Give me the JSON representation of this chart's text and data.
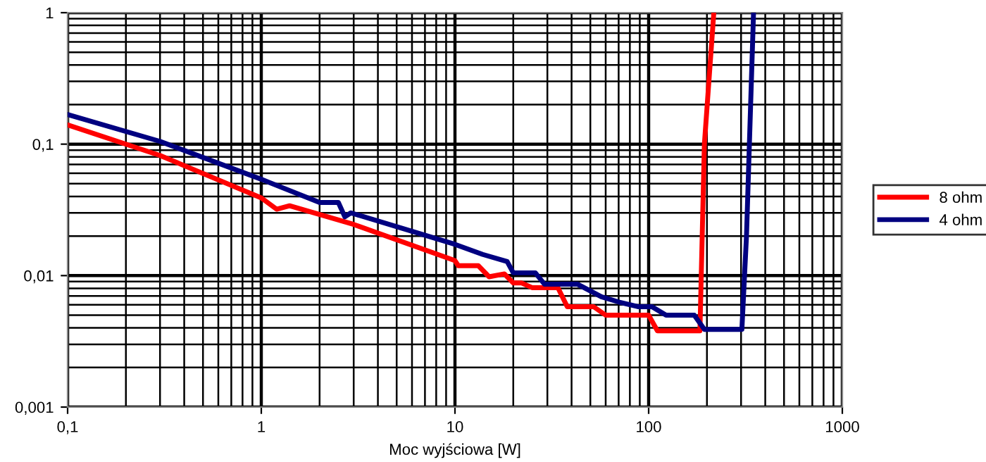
{
  "chart_data": {
    "type": "line",
    "xlabel": "Moc wyjściowa [W]",
    "log": "xy",
    "grid": true,
    "legend": "right",
    "line_style": "solid",
    "marker": "none",
    "xlim": [
      0.1,
      1000
    ],
    "ylim": [
      0.001,
      1
    ],
    "xticks": [
      {
        "value": 0.1,
        "label": "0,1"
      },
      1,
      10,
      100,
      1000
    ],
    "yticks": [
      {
        "value": 0.001,
        "label": "0,001"
      },
      {
        "value": 0.01,
        "label": "0,01"
      },
      {
        "value": 0.1,
        "label": "0,1"
      },
      1
    ],
    "series": [
      {
        "name": "8 ohm",
        "color": "#ff0000",
        "x": [
          0.1,
          0.3,
          1,
          1.2,
          1.4,
          3,
          10,
          10.4,
          13.2,
          15,
          18,
          20,
          22,
          25,
          28,
          34,
          38,
          45,
          52,
          60,
          70,
          90,
          100,
          111,
          140,
          172,
          184,
          194,
          217
        ],
        "values": [
          0.14,
          0.082,
          0.039,
          0.032,
          0.034,
          0.0245,
          0.013,
          0.0119,
          0.0119,
          0.0098,
          0.0103,
          0.0088,
          0.0088,
          0.0081,
          0.0081,
          0.0081,
          0.0058,
          0.0058,
          0.0058,
          0.005,
          0.005,
          0.005,
          0.005,
          0.0038,
          0.0038,
          0.0038,
          0.0038,
          0.1,
          1
        ]
      },
      {
        "name": "4 ohm",
        "color": "#000080",
        "x": [
          0.1,
          0.3,
          1,
          2,
          2.5,
          2.7,
          2.9,
          10,
          13.9,
          18.6,
          20,
          26,
          29,
          43,
          57,
          70,
          88,
          104,
          123,
          172,
          194,
          250,
          303,
          320,
          348
        ],
        "values": [
          0.168,
          0.105,
          0.054,
          0.036,
          0.036,
          0.028,
          0.03,
          0.0173,
          0.0145,
          0.0128,
          0.0105,
          0.0105,
          0.0086,
          0.0086,
          0.0069,
          0.0063,
          0.0058,
          0.0058,
          0.005,
          0.005,
          0.0039,
          0.0039,
          0.0039,
          0.02,
          1
        ]
      }
    ]
  }
}
